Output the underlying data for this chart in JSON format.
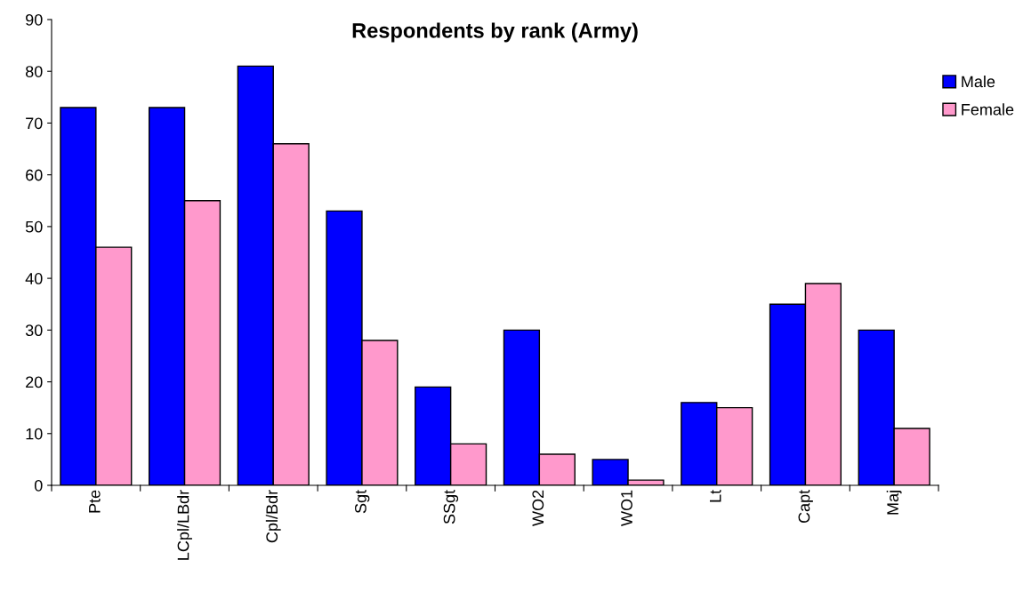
{
  "chart_data": {
    "type": "bar",
    "title": "Respondents by rank (Army)",
    "categories": [
      "Pte",
      "LCpl/LBdr",
      "Cpl/Bdr",
      "Sgt",
      "SSgt",
      "WO2",
      "WO1",
      "Lt",
      "Capt",
      "Maj"
    ],
    "series": [
      {
        "name": "Male",
        "color": "#0000ff",
        "values": [
          73,
          73,
          81,
          53,
          19,
          30,
          5,
          16,
          35,
          30
        ]
      },
      {
        "name": "Female",
        "color": "#ff99cc",
        "values": [
          46,
          55,
          66,
          28,
          8,
          6,
          1,
          15,
          39,
          11
        ]
      }
    ],
    "ylim": [
      0,
      90
    ],
    "yticks": [
      0,
      10,
      20,
      30,
      40,
      50,
      60,
      70,
      80,
      90
    ],
    "grid": false,
    "legend": "right"
  }
}
